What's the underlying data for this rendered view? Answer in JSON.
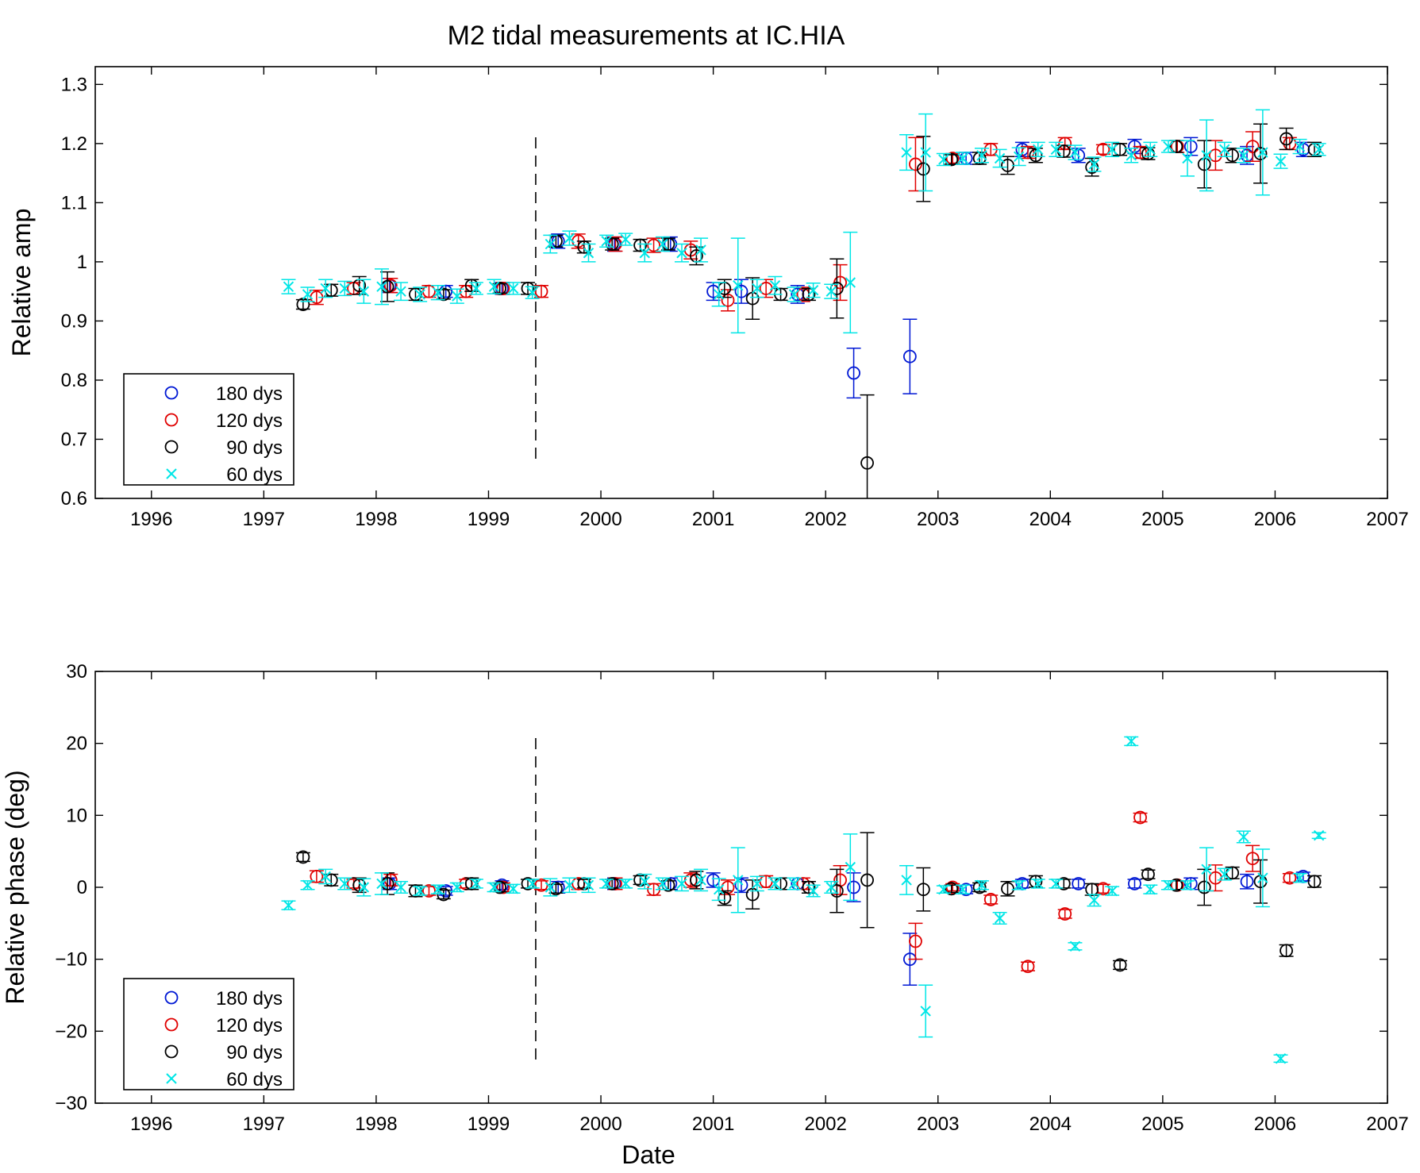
{
  "figure": {
    "title": "M2 tidal measurements at IC.HIA",
    "xlabel": "Date"
  },
  "legend": [
    "180 dys",
    "120 dys",
    "90 dys",
    "60 dys"
  ],
  "colors": {
    "180 dys": "#0018d4",
    "120 dys": "#e00000",
    "90 dys": "#000000",
    "60 dys": "#00e6e6"
  },
  "chart_data": [
    {
      "type": "scatter",
      "panel": "amplitude",
      "ylabel": "Relative amp",
      "xlim": [
        1995.5,
        2007
      ],
      "ylim": [
        0.6,
        1.33
      ],
      "xticks": [
        1996,
        1997,
        1998,
        1999,
        2000,
        2001,
        2002,
        2003,
        2004,
        2005,
        2006,
        2007
      ],
      "yticks": [
        0.6,
        0.7,
        0.8,
        0.9,
        1,
        1.1,
        1.2,
        1.3
      ],
      "ytick_labels": [
        "0.6",
        "0.7",
        "0.8",
        "0.9",
        "1",
        "1.1",
        "1.2",
        "1.3"
      ],
      "grid": false,
      "legend_position": "bottom-left",
      "vline": 1999.42,
      "error_bars": true,
      "series": [
        {
          "name": "180 dys",
          "marker": "circle",
          "x": [
            1998.12,
            1998.62,
            1999.12,
            1999.62,
            2000.12,
            2000.62,
            2001.0,
            2001.25,
            2001.75,
            2002.25,
            2002.75,
            2003.25,
            2003.75,
            2004.25,
            2004.75,
            2005.25,
            2005.75,
            2006.25
          ],
          "y": [
            0.96,
            0.95,
            0.955,
            1.035,
            1.03,
            1.03,
            0.95,
            0.95,
            0.945,
            0.812,
            0.84,
            1.175,
            1.19,
            1.18,
            1.195,
            1.195,
            1.18,
            1.19
          ],
          "err": [
            0.012,
            0.01,
            0.01,
            0.012,
            0.012,
            0.012,
            0.015,
            0.02,
            0.015,
            0.042,
            0.063,
            0.01,
            0.012,
            0.012,
            0.012,
            0.015,
            0.015,
            0.012
          ]
        },
        {
          "name": "120 dys",
          "marker": "circle",
          "x": [
            1997.47,
            1997.8,
            1998.13,
            1998.47,
            1998.8,
            1999.13,
            1999.47,
            1999.8,
            2000.13,
            2000.47,
            2000.8,
            2001.13,
            2001.47,
            2001.8,
            2002.13,
            2002.8,
            2003.13,
            2003.47,
            2003.8,
            2004.13,
            2004.47,
            2004.8,
            2005.13,
            2005.47,
            2005.8,
            2006.13
          ],
          "y": [
            0.94,
            0.955,
            0.96,
            0.95,
            0.95,
            0.955,
            0.95,
            1.035,
            1.03,
            1.028,
            1.02,
            0.935,
            0.955,
            0.945,
            0.965,
            1.165,
            1.175,
            1.19,
            1.185,
            1.2,
            1.19,
            1.185,
            1.195,
            1.18,
            1.195,
            1.2
          ],
          "err": [
            0.012,
            0.01,
            0.012,
            0.01,
            0.01,
            0.01,
            0.01,
            0.012,
            0.012,
            0.012,
            0.015,
            0.018,
            0.015,
            0.012,
            0.03,
            0.045,
            0.008,
            0.01,
            0.01,
            0.01,
            0.008,
            0.01,
            0.01,
            0.025,
            0.025,
            0.01
          ]
        },
        {
          "name": "90 dys",
          "marker": "circle",
          "x": [
            1997.35,
            1997.6,
            1997.85,
            1998.1,
            1998.35,
            1998.6,
            1998.85,
            1999.1,
            1999.35,
            1999.6,
            1999.85,
            2000.1,
            2000.35,
            2000.6,
            2000.85,
            2001.1,
            2001.35,
            2001.6,
            2001.85,
            2002.1,
            2002.37,
            2002.87,
            2003.12,
            2003.37,
            2003.62,
            2003.87,
            2004.12,
            2004.37,
            2004.62,
            2004.87,
            2005.12,
            2005.37,
            2005.62,
            2005.87,
            2006.1,
            2006.35
          ],
          "y": [
            0.928,
            0.952,
            0.96,
            0.958,
            0.945,
            0.945,
            0.96,
            0.955,
            0.955,
            1.035,
            1.025,
            1.03,
            1.028,
            1.03,
            1.01,
            0.955,
            0.938,
            0.945,
            0.945,
            0.955,
            0.66,
            1.157,
            1.173,
            1.175,
            1.163,
            1.18,
            1.187,
            1.16,
            1.19,
            1.183,
            1.195,
            1.165,
            1.18,
            1.183,
            1.208,
            1.19
          ],
          "err": [
            0.008,
            0.01,
            0.015,
            0.025,
            0.01,
            0.008,
            0.01,
            0.008,
            0.01,
            0.01,
            0.01,
            0.01,
            0.01,
            0.01,
            0.015,
            0.015,
            0.035,
            0.01,
            0.01,
            0.05,
            0.115,
            0.055,
            0.008,
            0.01,
            0.015,
            0.012,
            0.01,
            0.015,
            0.01,
            0.01,
            0.01,
            0.04,
            0.012,
            0.05,
            0.018,
            0.012
          ]
        },
        {
          "name": "60 dys",
          "marker": "x",
          "x": [
            1997.22,
            1997.39,
            1997.55,
            1997.72,
            1997.89,
            1998.05,
            1998.22,
            1998.39,
            1998.55,
            1998.72,
            1998.89,
            1999.05,
            1999.22,
            1999.39,
            1999.55,
            1999.72,
            1999.89,
            2000.05,
            2000.22,
            2000.39,
            2000.55,
            2000.72,
            2000.89,
            2001.05,
            2001.22,
            2001.39,
            2001.55,
            2001.72,
            2001.89,
            2002.05,
            2002.22,
            2002.72,
            2002.89,
            2003.05,
            2003.22,
            2003.39,
            2003.55,
            2003.72,
            2003.89,
            2004.05,
            2004.22,
            2004.39,
            2004.55,
            2004.72,
            2004.89,
            2005.05,
            2005.22,
            2005.39,
            2005.55,
            2005.72,
            2005.89,
            2006.05,
            2006.22,
            2006.39
          ],
          "y": [
            0.958,
            0.945,
            0.955,
            0.955,
            0.95,
            0.958,
            0.95,
            0.945,
            0.948,
            0.942,
            0.955,
            0.958,
            0.955,
            0.948,
            1.03,
            1.04,
            1.015,
            1.035,
            1.038,
            1.015,
            1.03,
            1.015,
            1.02,
            0.945,
            0.96,
            0.955,
            0.96,
            0.945,
            0.952,
            0.95,
            0.965,
            1.185,
            1.185,
            1.173,
            1.175,
            1.18,
            1.175,
            1.178,
            1.19,
            1.19,
            1.185,
            1.165,
            1.19,
            1.18,
            1.19,
            1.195,
            1.175,
            1.18,
            1.19,
            1.18,
            1.185,
            1.17,
            1.195,
            1.19
          ],
          "err": [
            0.012,
            0.012,
            0.015,
            0.012,
            0.02,
            0.03,
            0.015,
            0.012,
            0.012,
            0.012,
            0.01,
            0.012,
            0.01,
            0.01,
            0.015,
            0.012,
            0.015,
            0.01,
            0.01,
            0.015,
            0.012,
            0.015,
            0.02,
            0.02,
            0.08,
            0.015,
            0.015,
            0.012,
            0.012,
            0.012,
            0.085,
            0.03,
            0.065,
            0.01,
            0.01,
            0.012,
            0.015,
            0.015,
            0.012,
            0.012,
            0.012,
            0.012,
            0.012,
            0.012,
            0.012,
            0.01,
            0.03,
            0.06,
            0.012,
            0.012,
            0.072,
            0.012,
            0.012,
            0.01
          ]
        }
      ]
    },
    {
      "type": "scatter",
      "panel": "phase",
      "ylabel": "Relative phase (deg)",
      "xlabel": "Date",
      "xlim": [
        1995.5,
        2007
      ],
      "ylim": [
        -30,
        30
      ],
      "xticks": [
        1996,
        1997,
        1998,
        1999,
        2000,
        2001,
        2002,
        2003,
        2004,
        2005,
        2006,
        2007
      ],
      "yticks": [
        -30,
        -20,
        -10,
        0,
        10,
        20,
        30
      ],
      "ytick_labels": [
        "−30",
        "−20",
        "−10",
        "0",
        "10",
        "20",
        "30"
      ],
      "grid": false,
      "legend_position": "bottom-left",
      "vline": 1999.42,
      "error_bars": true,
      "series": [
        {
          "name": "180 dys",
          "marker": "circle",
          "x": [
            1998.12,
            1998.62,
            1999.12,
            1999.62,
            2000.12,
            2000.62,
            2001.0,
            2001.25,
            2001.75,
            2002.25,
            2002.75,
            2003.25,
            2003.75,
            2004.25,
            2004.75,
            2005.25,
            2005.75,
            2006.25
          ],
          "y": [
            0.5,
            -0.5,
            0.3,
            0.0,
            0.5,
            0.5,
            1.0,
            0.3,
            0.5,
            0.0,
            -10.0,
            -0.3,
            0.5,
            0.5,
            0.5,
            0.5,
            0.8,
            1.5
          ],
          "err": [
            0.8,
            0.6,
            0.6,
            0.8,
            0.8,
            0.8,
            1.0,
            1.0,
            0.8,
            2.0,
            3.6,
            0.6,
            0.6,
            0.6,
            0.6,
            0.8,
            1.0,
            0.6
          ]
        },
        {
          "name": "120 dys",
          "marker": "circle",
          "x": [
            1997.47,
            1997.8,
            1998.13,
            1998.47,
            1998.8,
            1999.13,
            1999.47,
            1999.8,
            2000.13,
            2000.47,
            2000.8,
            2001.13,
            2001.47,
            2001.8,
            2002.13,
            2002.8,
            2003.13,
            2003.47,
            2003.8,
            2004.13,
            2004.47,
            2004.8,
            2005.13,
            2005.47,
            2005.8,
            2006.13
          ],
          "y": [
            1.5,
            0.5,
            1.0,
            -0.5,
            0.5,
            0.0,
            0.3,
            0.5,
            0.5,
            -0.3,
            1.0,
            0.0,
            0.8,
            0.5,
            1.0,
            -7.5,
            0.0,
            -1.7,
            -11.0,
            -3.7,
            -0.2,
            9.7,
            0.3,
            1.3,
            4.0,
            1.3
          ],
          "err": [
            0.8,
            0.6,
            0.8,
            0.6,
            0.6,
            0.6,
            0.6,
            0.8,
            0.8,
            0.8,
            1.0,
            1.0,
            0.8,
            0.8,
            2.0,
            2.5,
            0.5,
            0.6,
            0.6,
            0.6,
            0.6,
            0.6,
            0.6,
            1.8,
            1.8,
            0.6
          ]
        },
        {
          "name": "90 dys",
          "marker": "circle",
          "x": [
            1997.35,
            1997.6,
            1997.85,
            1998.1,
            1998.35,
            1998.6,
            1998.85,
            1999.1,
            1999.35,
            1999.6,
            1999.85,
            2000.1,
            2000.35,
            2000.6,
            2000.85,
            2001.1,
            2001.35,
            2001.6,
            2001.85,
            2002.1,
            2002.37,
            2002.87,
            2003.12,
            2003.37,
            2003.62,
            2003.87,
            2004.12,
            2004.37,
            2004.62,
            2004.87,
            2005.12,
            2005.37,
            2005.62,
            2005.87,
            2006.1,
            2006.35
          ],
          "y": [
            4.2,
            1.0,
            0.3,
            0.5,
            -0.5,
            -1.0,
            0.5,
            0.0,
            0.5,
            -0.2,
            0.5,
            0.5,
            1.0,
            0.3,
            1.0,
            -1.5,
            -1.0,
            0.5,
            0.0,
            -0.5,
            1.0,
            -0.3,
            -0.2,
            0.0,
            -0.2,
            0.8,
            0.5,
            -0.3,
            -10.8,
            1.8,
            0.3,
            0.0,
            2.0,
            0.8,
            -8.8,
            0.8
          ],
          "err": [
            0.6,
            0.8,
            1.0,
            1.5,
            0.8,
            0.6,
            0.8,
            0.6,
            0.6,
            0.6,
            0.6,
            0.6,
            0.6,
            0.6,
            1.2,
            1.0,
            2.0,
            0.8,
            0.8,
            3.0,
            6.6,
            3.0,
            0.5,
            0.6,
            1.0,
            0.8,
            0.6,
            0.8,
            0.6,
            0.6,
            0.6,
            2.5,
            0.8,
            3.0,
            0.8,
            0.8
          ]
        },
        {
          "name": "60 dys",
          "marker": "x",
          "x": [
            1997.22,
            1997.39,
            1997.55,
            1997.72,
            1997.89,
            1998.05,
            1998.22,
            1998.39,
            1998.55,
            1998.72,
            1998.89,
            1999.05,
            1999.22,
            1999.39,
            1999.55,
            1999.72,
            1999.89,
            2000.05,
            2000.22,
            2000.39,
            2000.55,
            2000.72,
            2000.89,
            2001.05,
            2001.22,
            2001.39,
            2001.55,
            2001.72,
            2001.89,
            2002.05,
            2002.22,
            2002.72,
            2002.89,
            2003.05,
            2003.22,
            2003.39,
            2003.55,
            2003.72,
            2003.89,
            2004.05,
            2004.22,
            2004.39,
            2004.55,
            2004.72,
            2004.89,
            2005.05,
            2005.22,
            2005.39,
            2005.55,
            2005.72,
            2005.89,
            2006.05,
            2006.22,
            2006.39
          ],
          "y": [
            -2.5,
            0.3,
            1.5,
            0.5,
            0.0,
            0.5,
            0.0,
            -0.5,
            -0.3,
            0.0,
            0.5,
            0.0,
            -0.2,
            0.5,
            0.0,
            0.3,
            0.3,
            0.5,
            0.5,
            0.8,
            0.5,
            0.5,
            1.0,
            -0.3,
            1.0,
            0.5,
            0.5,
            0.5,
            -0.5,
            0.0,
            2.8,
            1.0,
            -17.2,
            -0.3,
            -0.3,
            0.3,
            -4.3,
            0.3,
            0.5,
            0.5,
            -8.2,
            -1.8,
            -0.5,
            20.3,
            -0.3,
            0.3,
            0.3,
            2.5,
            1.8,
            7.0,
            1.3,
            -23.8,
            1.3,
            7.2
          ],
          "err": [
            0.6,
            0.6,
            1.0,
            0.8,
            1.2,
            1.5,
            0.8,
            0.6,
            0.6,
            0.6,
            0.6,
            0.6,
            0.6,
            0.6,
            1.2,
            1.0,
            1.0,
            0.6,
            0.6,
            1.0,
            0.8,
            1.0,
            1.5,
            1.5,
            4.5,
            1.0,
            0.8,
            0.8,
            0.8,
            0.8,
            4.6,
            2.0,
            3.6,
            0.5,
            0.6,
            0.6,
            0.8,
            0.6,
            0.6,
            0.6,
            0.5,
            0.8,
            0.6,
            0.6,
            0.6,
            0.6,
            0.6,
            3.0,
            0.8,
            0.8,
            4.0,
            0.5,
            0.6,
            0.4
          ]
        }
      ]
    }
  ]
}
